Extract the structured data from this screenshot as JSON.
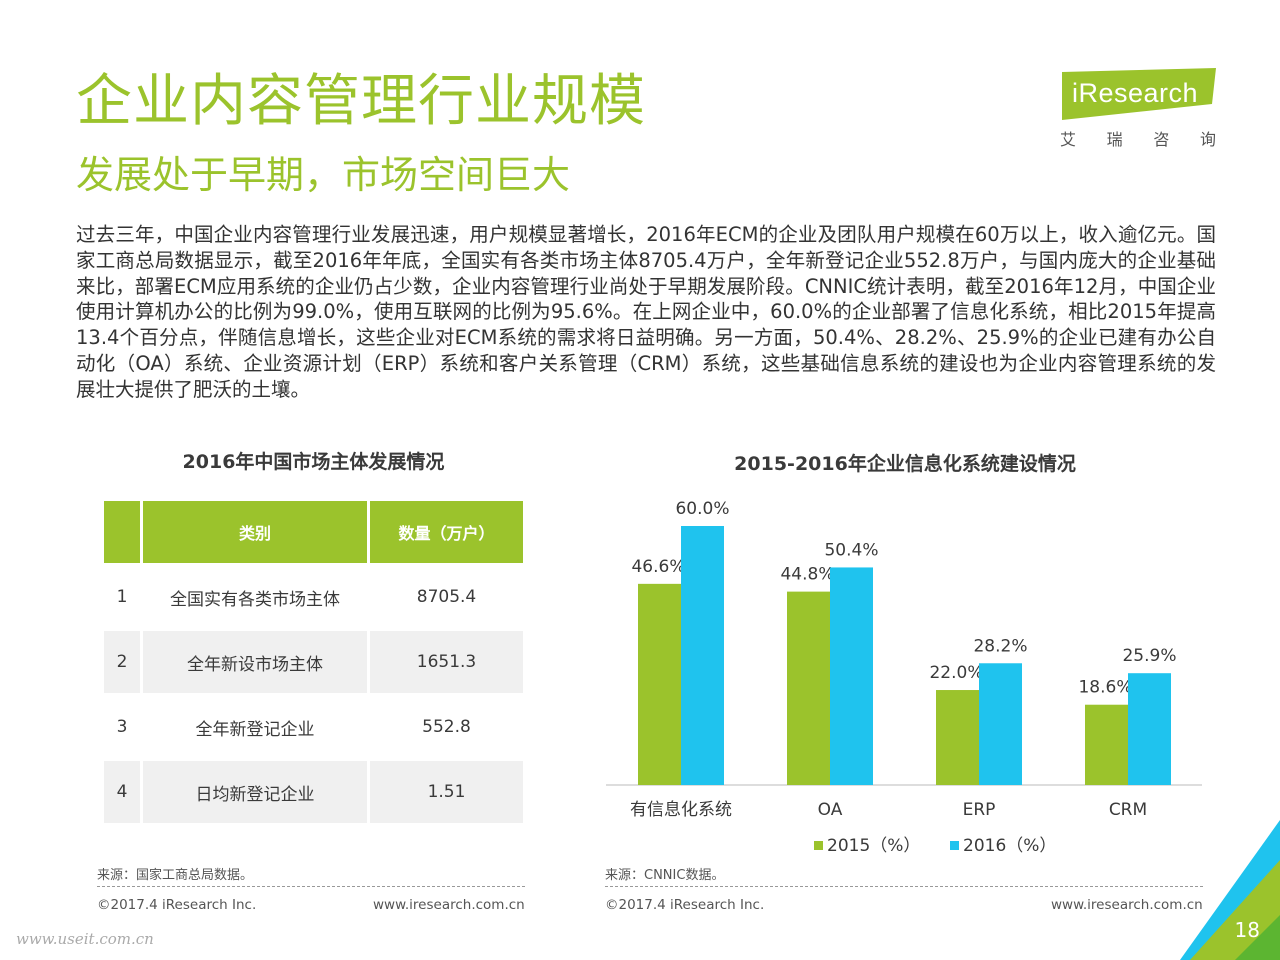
{
  "header": {
    "title": "企业内容管理行业规模",
    "subtitle": "发展处于早期，市场空间巨大",
    "logo_text": "iResearch",
    "logo_cn": [
      "艾",
      "瑞",
      "咨",
      "询"
    ]
  },
  "paragraph": "过去三年，中国企业内容管理行业发展迅速，用户规模显著增长，2016年ECM的企业及团队用户规模在60万以上，收入逾亿元。国家工商总局数据显示，截至2016年年底，全国实有各类市场主体8705.4万户，全年新登记企业552.8万户，与国内庞大的企业基础来比，部署ECM应用系统的企业仍占少数，企业内容管理行业尚处于早期发展阶段。CNNIC统计表明，截至2016年12月，中国企业使用计算机办公的比例为99.0%，使用互联网的比例为95.6%。在上网企业中，60.0%的企业部署了信息化系统，相比2015年提高13.4个百分点，伴随信息增长，这些企业对ECM系统的需求将日益明确。另一方面，50.4%、28.2%、25.9%的企业已建有办公自动化（OA）系统、企业资源计划（ERP）系统和客户关系管理（CRM）系统，这些基础信息系统的建设也为企业内容管理系统的发展壮大提供了肥沃的土壤。",
  "left_panel": {
    "title": "2016年中国市场主体发展情况",
    "columns": [
      "类别",
      "数量（万户）"
    ],
    "rows": [
      {
        "no": "1",
        "name": "全国实有各类市场主体",
        "value": "8705.4"
      },
      {
        "no": "2",
        "name": "全年新设市场主体",
        "value": "1651.3"
      },
      {
        "no": "3",
        "name": "全年新登记企业",
        "value": "552.8"
      },
      {
        "no": "4",
        "name": "日均新登记企业",
        "value": "1.51"
      }
    ],
    "source": "来源：国家工商总局数据。",
    "copyright": "©2017.4 iResearch Inc.",
    "website": "www.iresearch.com.cn"
  },
  "right_panel": {
    "title": "2015-2016年企业信息化系统建设情况",
    "source": "来源：CNNIC数据。",
    "copyright": "©2017.4 iResearch Inc.",
    "website": "www.iresearch.com.cn"
  },
  "chart_data": {
    "type": "bar",
    "title": "2015-2016年企业信息化系统建设情况",
    "categories": [
      "有信息化系统",
      "OA",
      "ERP",
      "CRM"
    ],
    "series": [
      {
        "name": "2015（%）",
        "color": "#9bc32c",
        "values": [
          46.6,
          44.8,
          22.0,
          18.6
        ],
        "labels": [
          "46.6%",
          "44.8%",
          "22.0%",
          "18.6%"
        ]
      },
      {
        "name": "2016（%）",
        "color": "#1fc3ee",
        "values": [
          60.0,
          50.4,
          28.2,
          25.9
        ],
        "labels": [
          "60.0%",
          "50.4%",
          "28.2%",
          "25.9%"
        ]
      }
    ],
    "ylim": [
      0,
      60
    ],
    "grid": false,
    "legend": "bottom"
  },
  "page_number": "18",
  "watermark": "www.useit.com.cn",
  "colors": {
    "accent": "#9bc32c",
    "secondary": "#1fc3ee"
  }
}
